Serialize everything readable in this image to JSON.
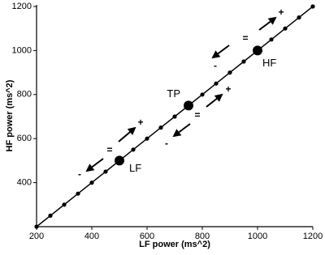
{
  "chart_data": {
    "type": "line",
    "x_label": "LF power (ms^2)",
    "y_label": "HF power (ms^2)",
    "x": [
      200,
      250,
      300,
      350,
      400,
      450,
      500,
      550,
      600,
      650,
      700,
      750,
      800,
      850,
      900,
      950,
      1000,
      1050,
      1100,
      1150,
      1200
    ],
    "y": [
      200,
      250,
      300,
      350,
      400,
      450,
      500,
      550,
      600,
      650,
      700,
      750,
      800,
      850,
      900,
      950,
      1000,
      1050,
      1100,
      1150,
      1200
    ],
    "color": "#000000",
    "points": [
      {
        "label": "LF",
        "x": 500,
        "y": 500
      },
      {
        "label": "TP",
        "x": 750,
        "y": 750
      },
      {
        "label": "HF",
        "x": 1000,
        "y": 1000
      }
    ],
    "annotations": [
      "+",
      "=",
      "-",
      "+",
      "=",
      "-",
      "+",
      "=",
      "-"
    ],
    "xlim": [
      200,
      1200
    ],
    "ylim": [
      200,
      1200
    ],
    "xticks": [
      200,
      400,
      600,
      800,
      1000,
      1200
    ],
    "yticks": [
      400,
      600,
      800,
      1000,
      1200
    ]
  }
}
